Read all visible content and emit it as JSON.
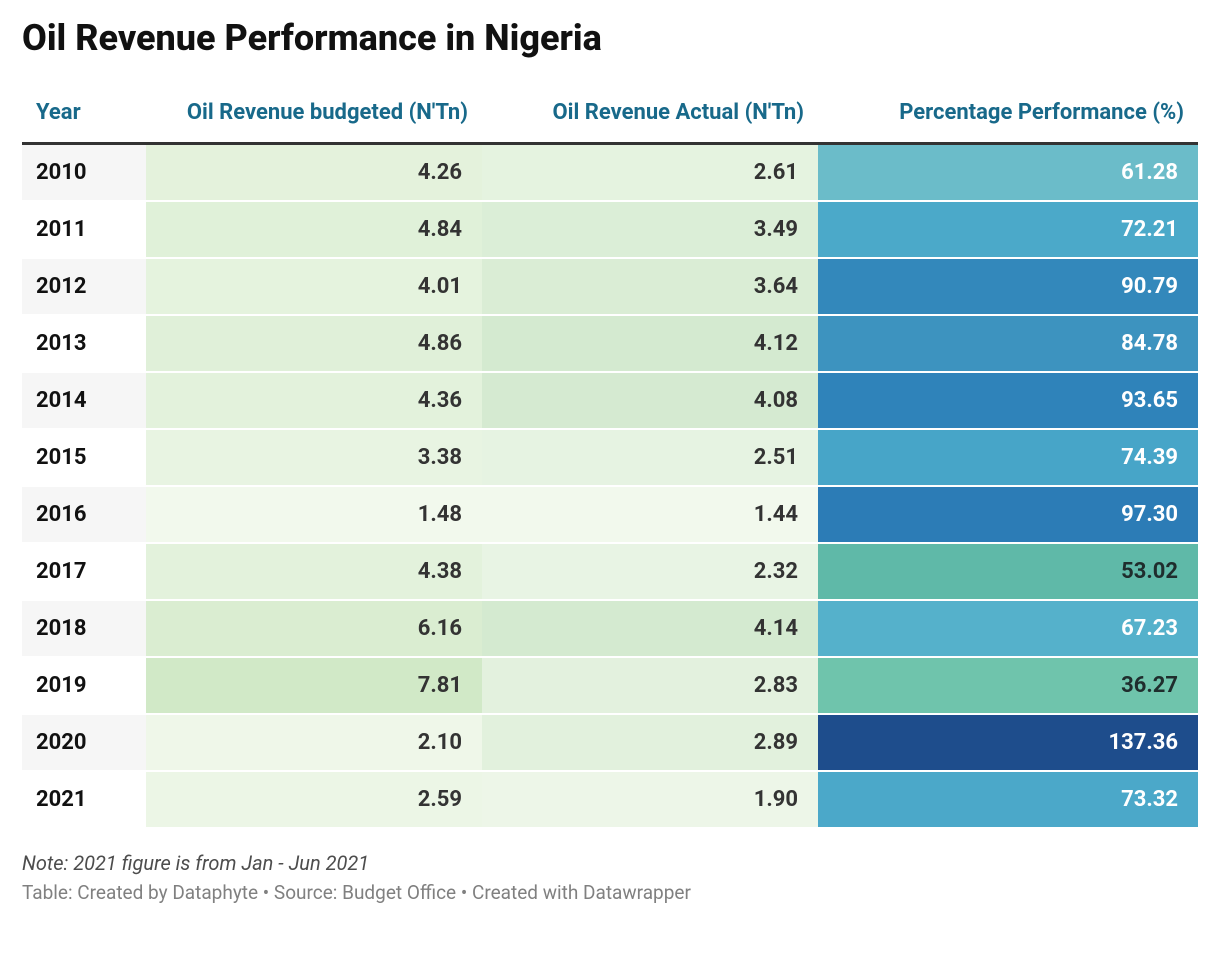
{
  "title": "Oil Revenue Performance in Nigeria",
  "columns": {
    "year": "Year",
    "budgeted": "Oil Revenue budgeted (N'Tn)",
    "actual": "Oil Revenue Actual (N'Tn)",
    "performance": "Percentage Performance (%)"
  },
  "column_widths": {
    "year": 124,
    "budgeted": 336,
    "actual": 336,
    "performance": 380
  },
  "header_color": "#18698a",
  "header_border_color": "#333333",
  "row_stripe_colors": {
    "even": "#f6f6f6",
    "odd": "#ffffff"
  },
  "year_text_color": "#111111",
  "value_text_color": "#333333",
  "budgeted_scale": {
    "min": 1.48,
    "max": 7.81,
    "min_color": "#f2f9ed",
    "max_color": "#d1e9c7"
  },
  "actual_scale": {
    "min": 1.44,
    "max": 4.14,
    "min_color": "#f2f9ed",
    "max_color": "#d4ead0"
  },
  "performance_scale": {
    "domain": [
      36.27,
      53.02,
      61.28,
      67.23,
      72.21,
      73.32,
      74.39,
      84.78,
      90.79,
      93.65,
      97.3,
      137.36
    ],
    "range": [
      "#6fc4ac",
      "#5fb9a8",
      "#6bbcc9",
      "#55b1cb",
      "#4ba9c9",
      "#4ba8c9",
      "#47a5c8",
      "#3d93bf",
      "#3388bb",
      "#2f83ba",
      "#2c7cb6",
      "#1e4d8c"
    ]
  },
  "performance_dark_text_threshold": 55,
  "performance_text_colors": {
    "light": "#ffffff",
    "dark": "#1f2d2d"
  },
  "rows": [
    {
      "year": "2010",
      "budgeted": "4.26",
      "actual": "2.61",
      "performance": "61.28",
      "perf_val": 61.28,
      "bud_val": 4.26,
      "act_val": 2.61
    },
    {
      "year": "2011",
      "budgeted": "4.84",
      "actual": "3.49",
      "performance": "72.21",
      "perf_val": 72.21,
      "bud_val": 4.84,
      "act_val": 3.49
    },
    {
      "year": "2012",
      "budgeted": "4.01",
      "actual": "3.64",
      "performance": "90.79",
      "perf_val": 90.79,
      "bud_val": 4.01,
      "act_val": 3.64
    },
    {
      "year": "2013",
      "budgeted": "4.86",
      "actual": "4.12",
      "performance": "84.78",
      "perf_val": 84.78,
      "bud_val": 4.86,
      "act_val": 4.12
    },
    {
      "year": "2014",
      "budgeted": "4.36",
      "actual": "4.08",
      "performance": "93.65",
      "perf_val": 93.65,
      "bud_val": 4.36,
      "act_val": 4.08
    },
    {
      "year": "2015",
      "budgeted": "3.38",
      "actual": "2.51",
      "performance": "74.39",
      "perf_val": 74.39,
      "bud_val": 3.38,
      "act_val": 2.51
    },
    {
      "year": "2016",
      "budgeted": "1.48",
      "actual": "1.44",
      "performance": "97.30",
      "perf_val": 97.3,
      "bud_val": 1.48,
      "act_val": 1.44
    },
    {
      "year": "2017",
      "budgeted": "4.38",
      "actual": "2.32",
      "performance": "53.02",
      "perf_val": 53.02,
      "bud_val": 4.38,
      "act_val": 2.32
    },
    {
      "year": "2018",
      "budgeted": "6.16",
      "actual": "4.14",
      "performance": "67.23",
      "perf_val": 67.23,
      "bud_val": 6.16,
      "act_val": 4.14
    },
    {
      "year": "2019",
      "budgeted": "7.81",
      "actual": "2.83",
      "performance": "36.27",
      "perf_val": 36.27,
      "bud_val": 7.81,
      "act_val": 2.83
    },
    {
      "year": "2020",
      "budgeted": "2.10",
      "actual": "2.89",
      "performance": "137.36",
      "perf_val": 137.36,
      "bud_val": 2.1,
      "act_val": 2.89
    },
    {
      "year": "2021",
      "budgeted": "2.59",
      "actual": "1.90",
      "performance": "73.32",
      "perf_val": 73.32,
      "bud_val": 2.59,
      "act_val": 1.9
    }
  ],
  "note": "Note: 2021 figure is from Jan - Jun 2021",
  "credit": "Table: Created by Dataphyte • Source: Budget Office • Created with Datawrapper"
}
